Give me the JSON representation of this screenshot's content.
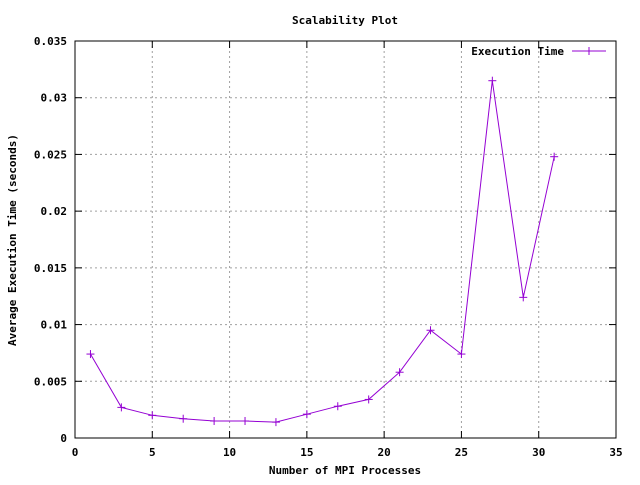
{
  "chart_data": {
    "type": "line",
    "title": "Scalability Plot",
    "xlabel": "Number of MPI Processes",
    "ylabel": "Average Execution Time (seconds)",
    "xlim": [
      0,
      35
    ],
    "ylim": [
      0,
      0.035
    ],
    "x_ticks": [
      0,
      5,
      10,
      15,
      20,
      25,
      30,
      35
    ],
    "x_tick_labels": [
      "0",
      "5",
      "10",
      "15",
      "20",
      "25",
      "30",
      "35"
    ],
    "y_ticks": [
      0,
      0.005,
      0.01,
      0.015,
      0.02,
      0.025,
      0.03,
      0.035
    ],
    "y_tick_labels": [
      "0",
      "0.005",
      "0.01",
      "0.015",
      "0.02",
      "0.025",
      "0.03",
      "0.035"
    ],
    "grid": true,
    "legend_position": "top-right",
    "series": [
      {
        "name": "Execution Time",
        "color": "#9400d3",
        "marker": "plus",
        "x": [
          1,
          3,
          5,
          7,
          9,
          11,
          13,
          15,
          17,
          19,
          21,
          23,
          25,
          27,
          29,
          31
        ],
        "y": [
          0.0074,
          0.0027,
          0.002,
          0.0017,
          0.0015,
          0.0015,
          0.0014,
          0.0021,
          0.0028,
          0.0034,
          0.0058,
          0.0095,
          0.0074,
          0.0315,
          0.0124,
          0.0248
        ]
      }
    ]
  }
}
